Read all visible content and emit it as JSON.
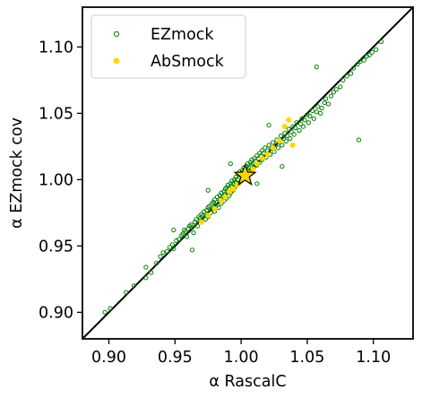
{
  "chart_data": {
    "type": "scatter",
    "xlabel": "α RascalC",
    "ylabel": "α EZmock cov",
    "xlim": [
      0.88,
      1.13
    ],
    "ylim": [
      0.88,
      1.13
    ],
    "xticks": [
      0.9,
      0.95,
      1.0,
      1.05,
      1.1
    ],
    "yticks": [
      0.9,
      0.95,
      1.0,
      1.05,
      1.1
    ],
    "xtick_labels": [
      "0.90",
      "0.95",
      "1.00",
      "1.05",
      "1.10"
    ],
    "ytick_labels": [
      "0.90",
      "0.95",
      "1.00",
      "1.05",
      "1.10"
    ],
    "grid": false,
    "legend_position": "top-left",
    "reference_line": {
      "type": "identity",
      "color": "#000000"
    },
    "series": [
      {
        "name": "EZmock",
        "color": "#008000",
        "marker": "hollow-circle",
        "points": [
          [
            0.897,
            0.9
          ],
          [
            0.901,
            0.903
          ],
          [
            0.913,
            0.915
          ],
          [
            0.919,
            0.92
          ],
          [
            0.928,
            0.926
          ],
          [
            0.932,
            0.93
          ],
          [
            0.936,
            0.937
          ],
          [
            0.939,
            0.942
          ],
          [
            0.941,
            0.945
          ],
          [
            0.944,
            0.946
          ],
          [
            0.946,
            0.949
          ],
          [
            0.948,
            0.951
          ],
          [
            0.949,
            0.948
          ],
          [
            0.951,
            0.954
          ],
          [
            0.953,
            0.955
          ],
          [
            0.955,
            0.958
          ],
          [
            0.956,
            0.959
          ],
          [
            0.957,
            0.962
          ],
          [
            0.958,
            0.961
          ],
          [
            0.959,
            0.957
          ],
          [
            0.96,
            0.963
          ],
          [
            0.961,
            0.965
          ],
          [
            0.962,
            0.966
          ],
          [
            0.963,
            0.964
          ],
          [
            0.964,
            0.96
          ],
          [
            0.965,
            0.968
          ],
          [
            0.966,
            0.97
          ],
          [
            0.967,
            0.965
          ],
          [
            0.968,
            0.972
          ],
          [
            0.969,
            0.971
          ],
          [
            0.97,
            0.974
          ],
          [
            0.97,
            0.968
          ],
          [
            0.971,
            0.973
          ],
          [
            0.972,
            0.976
          ],
          [
            0.973,
            0.97
          ],
          [
            0.974,
            0.977
          ],
          [
            0.975,
            0.979
          ],
          [
            0.975,
            0.972
          ],
          [
            0.976,
            0.98
          ],
          [
            0.977,
            0.975
          ],
          [
            0.978,
            0.982
          ],
          [
            0.978,
            0.978
          ],
          [
            0.979,
            0.983
          ],
          [
            0.98,
            0.976
          ],
          [
            0.98,
            0.985
          ],
          [
            0.981,
            0.98
          ],
          [
            0.982,
            0.987
          ],
          [
            0.982,
            0.983
          ],
          [
            0.983,
            0.979
          ],
          [
            0.984,
            0.988
          ],
          [
            0.984,
            0.985
          ],
          [
            0.985,
            0.99
          ],
          [
            0.985,
            0.982
          ],
          [
            0.986,
            0.987
          ],
          [
            0.987,
            0.991
          ],
          [
            0.987,
            0.984
          ],
          [
            0.988,
            0.993
          ],
          [
            0.988,
            0.989
          ],
          [
            0.989,
            0.986
          ],
          [
            0.989,
            0.994
          ],
          [
            0.99,
            0.991
          ],
          [
            0.99,
            0.996
          ],
          [
            0.991,
            0.988
          ],
          [
            0.991,
            0.993
          ],
          [
            0.992,
            0.997
          ],
          [
            0.992,
            0.99
          ],
          [
            0.993,
            0.995
          ],
          [
            0.993,
            0.999
          ],
          [
            0.994,
            0.992
          ],
          [
            0.994,
            0.997
          ],
          [
            0.995,
            1.0
          ],
          [
            0.995,
            0.994
          ],
          [
            0.996,
            0.998
          ],
          [
            0.996,
            1.002
          ],
          [
            0.997,
            0.996
          ],
          [
            0.997,
            1.0
          ],
          [
            0.998,
            1.004
          ],
          [
            0.998,
            0.997
          ],
          [
            0.999,
            1.002
          ],
          [
            0.999,
            1.006
          ],
          [
            1.0,
            0.999
          ],
          [
            1.0,
            1.003
          ],
          [
            1.001,
            1.007
          ],
          [
            1.001,
            1.001
          ],
          [
            1.002,
            1.005
          ],
          [
            1.002,
            1.009
          ],
          [
            1.003,
            1.002
          ],
          [
            1.003,
            1.006
          ],
          [
            1.004,
            1.01
          ],
          [
            1.004,
            1.004
          ],
          [
            1.005,
            1.008
          ],
          [
            1.005,
            1.012
          ],
          [
            1.006,
            1.005
          ],
          [
            1.006,
            1.009
          ],
          [
            1.007,
            1.013
          ],
          [
            1.007,
            1.007
          ],
          [
            1.008,
            1.011
          ],
          [
            1.008,
            1.015
          ],
          [
            1.009,
            1.008
          ],
          [
            1.009,
            1.012
          ],
          [
            1.01,
            1.016
          ],
          [
            1.01,
            1.01
          ],
          [
            1.011,
            1.014
          ],
          [
            1.012,
            1.018
          ],
          [
            1.012,
            1.011
          ],
          [
            1.013,
            1.016
          ],
          [
            1.014,
            1.02
          ],
          [
            1.014,
            1.013
          ],
          [
            1.015,
            1.018
          ],
          [
            1.016,
            1.022
          ],
          [
            1.016,
            1.015
          ],
          [
            1.017,
            1.02
          ],
          [
            1.018,
            1.024
          ],
          [
            1.019,
            1.017
          ],
          [
            1.02,
            1.022
          ],
          [
            1.021,
            1.026
          ],
          [
            1.022,
            1.019
          ],
          [
            1.023,
            1.024
          ],
          [
            1.024,
            1.028
          ],
          [
            1.025,
            1.021
          ],
          [
            1.026,
            1.026
          ],
          [
            1.027,
            1.03
          ],
          [
            1.028,
            1.024
          ],
          [
            1.029,
            1.028
          ],
          [
            1.03,
            1.033
          ],
          [
            1.031,
            1.026
          ],
          [
            1.032,
            1.031
          ],
          [
            1.033,
            1.035
          ],
          [
            1.034,
            1.029
          ],
          [
            1.035,
            1.033
          ],
          [
            1.036,
            1.038
          ],
          [
            1.037,
            1.031
          ],
          [
            1.038,
            1.036
          ],
          [
            1.039,
            1.04
          ],
          [
            1.04,
            1.034
          ],
          [
            1.041,
            1.039
          ],
          [
            1.042,
            1.043
          ],
          [
            1.044,
            1.037
          ],
          [
            1.045,
            1.042
          ],
          [
            1.046,
            1.046
          ],
          [
            1.047,
            1.04
          ],
          [
            1.048,
            1.045
          ],
          [
            1.05,
            1.049
          ],
          [
            1.051,
            1.043
          ],
          [
            1.052,
            1.048
          ],
          [
            1.054,
            1.052
          ],
          [
            1.055,
            1.046
          ],
          [
            1.057,
            1.051
          ],
          [
            1.058,
            1.055
          ],
          [
            1.06,
            1.05
          ],
          [
            1.061,
            1.054
          ],
          [
            1.063,
            1.058
          ],
          [
            1.064,
            1.061
          ],
          [
            1.066,
            1.057
          ],
          [
            1.068,
            1.063
          ],
          [
            1.07,
            1.066
          ],
          [
            1.072,
            1.068
          ],
          [
            1.075,
            1.07
          ],
          [
            1.077,
            1.075
          ],
          [
            1.08,
            1.078
          ],
          [
            1.083,
            1.08
          ],
          [
            1.085,
            1.084
          ],
          [
            1.088,
            1.087
          ],
          [
            1.09,
            1.089
          ],
          [
            1.093,
            1.09
          ],
          [
            1.095,
            1.093
          ],
          [
            1.097,
            1.094
          ],
          [
            1.099,
            1.096
          ],
          [
            1.102,
            1.098
          ],
          [
            1.106,
            1.104
          ],
          [
            1.057,
            1.085
          ],
          [
            1.089,
            1.03
          ],
          [
            0.963,
            0.947
          ],
          [
            0.949,
            0.962
          ],
          [
            0.975,
            0.992
          ],
          [
            1.021,
            1.041
          ],
          [
            0.992,
            1.012
          ],
          [
            1.031,
            1.01
          ],
          [
            0.928,
            0.934
          ],
          [
            1.012,
            0.997
          ]
        ]
      },
      {
        "name": "AbSmock",
        "color": "#FFD700",
        "marker": "filled-circle",
        "points": [
          [
            0.97,
            0.968
          ],
          [
            0.975,
            0.973
          ],
          [
            0.98,
            0.978
          ],
          [
            0.985,
            0.984
          ],
          [
            0.988,
            0.987
          ],
          [
            0.991,
            0.991
          ],
          [
            0.994,
            0.993
          ],
          [
            0.997,
            0.996
          ],
          [
            1.0,
            1.0
          ],
          [
            1.003,
            1.002
          ],
          [
            1.006,
            1.005
          ],
          [
            1.009,
            1.008
          ],
          [
            1.012,
            1.012
          ],
          [
            1.016,
            1.016
          ],
          [
            1.02,
            1.019
          ],
          [
            1.024,
            1.024
          ],
          [
            1.029,
            1.029
          ],
          [
            1.033,
            1.04
          ],
          [
            1.036,
            1.045
          ],
          [
            1.039,
            1.026
          ]
        ]
      }
    ],
    "highlight_marker": {
      "shape": "star",
      "x": 1.003,
      "y": 1.003,
      "fill": "#FFD700",
      "stroke": "#000000"
    }
  }
}
